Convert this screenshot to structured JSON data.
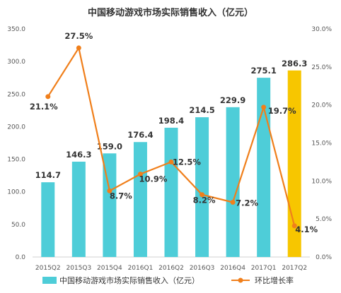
{
  "chart_data": {
    "type": "bar",
    "title": "中国移动游戏市场实际销售收入（亿元）",
    "categories": [
      "2015Q2",
      "2015Q3",
      "2015Q4",
      "2016Q1",
      "2016Q2",
      "2016Q3",
      "2016Q4",
      "2017Q1",
      "2017Q2"
    ],
    "series": [
      {
        "name": "中国移动游戏市场实际销售收入（亿元）",
        "type": "bar",
        "axis": "left",
        "values": [
          114.7,
          146.3,
          159.0,
          176.4,
          198.4,
          214.5,
          229.9,
          275.1,
          286.3
        ],
        "labels": [
          "114.7",
          "146.3",
          "159.0",
          "176.4",
          "198.4",
          "214.5",
          "229.9",
          "275.1",
          "286.3"
        ],
        "color": "#4ECDD8",
        "highlight_color": "#F7C600",
        "highlight_index": 8
      },
      {
        "name": "环比增长率",
        "type": "line",
        "axis": "right",
        "values": [
          21.1,
          27.5,
          8.7,
          10.9,
          12.5,
          8.2,
          7.2,
          19.7,
          4.1
        ],
        "labels": [
          "21.1%",
          "27.5%",
          "8.7%",
          "10.9%",
          "12.5%",
          "8.2%",
          "7.2%",
          "19.7%",
          "4.1%"
        ],
        "color": "#F07F1B"
      }
    ],
    "y_left": {
      "ylim": [
        0,
        350
      ],
      "ticks": [
        0,
        50,
        100,
        150,
        200,
        250,
        300,
        350
      ],
      "tick_labels": [
        "0.0",
        "50.0",
        "100.0",
        "150.0",
        "200.0",
        "250.0",
        "300.0",
        "350.0"
      ]
    },
    "y_right": {
      "ylim": [
        0,
        30
      ],
      "ticks": [
        0,
        5,
        10,
        15,
        20,
        25,
        30
      ],
      "tick_labels": [
        "0.0%",
        "5.0%",
        "10.0%",
        "15.0%",
        "20.0%",
        "25.0%",
        "30.0%"
      ]
    },
    "grid": false,
    "legend_position": "bottom"
  }
}
